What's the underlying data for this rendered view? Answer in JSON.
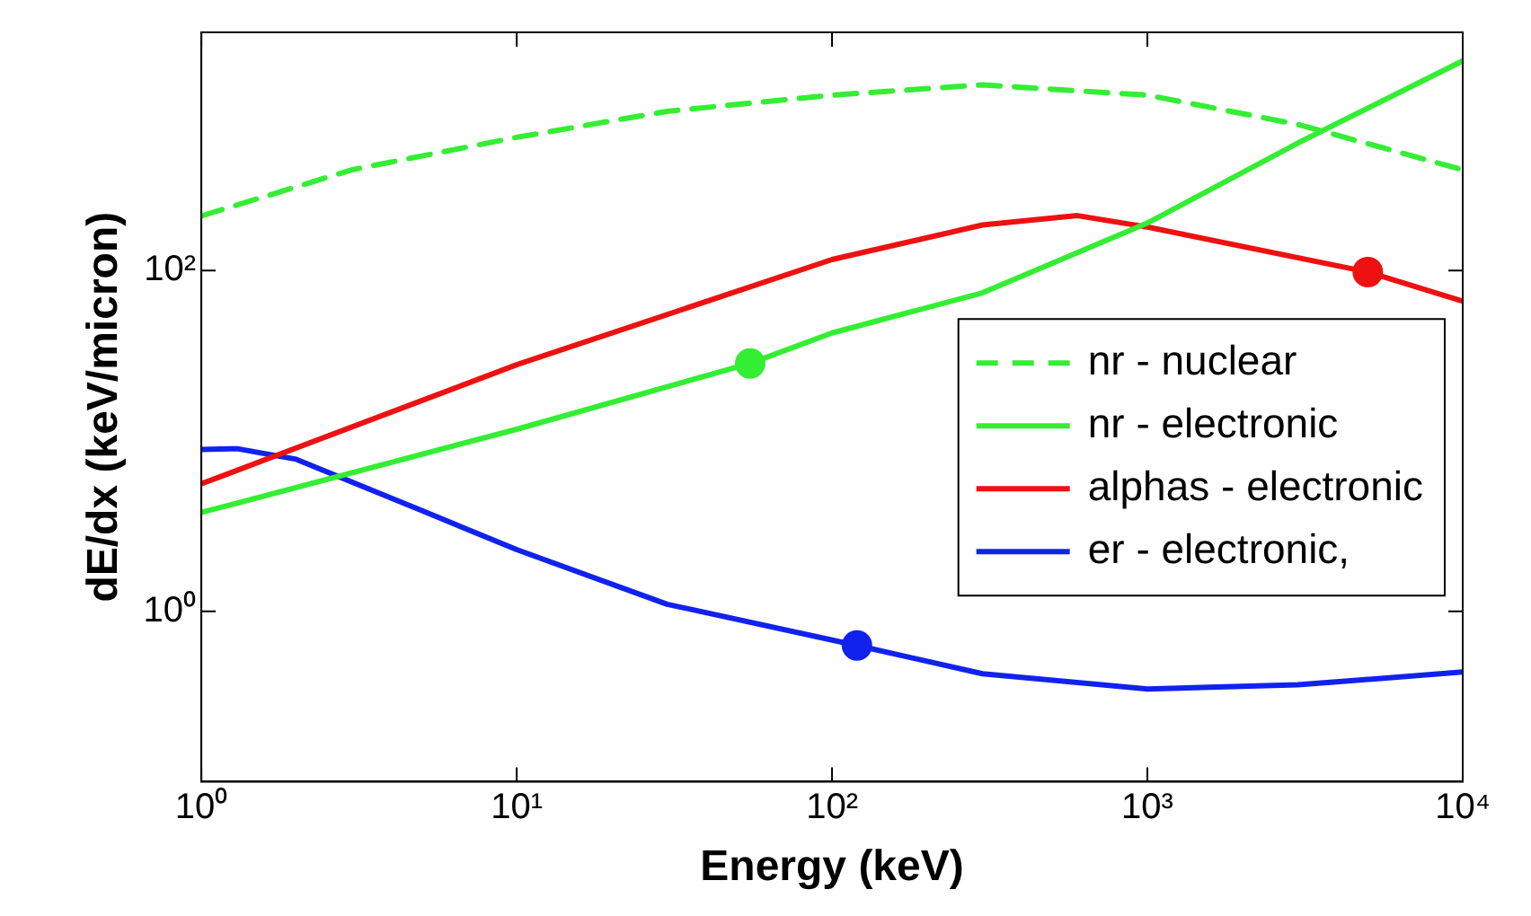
{
  "chart_data": {
    "type": "line",
    "xlabel": "Energy (keV)",
    "ylabel": "dE/dx (keV/micron)",
    "log": "xy",
    "xlim": [
      1,
      10000
    ],
    "ylim": [
      0.1,
      2500
    ],
    "xticks": [
      {
        "value": 1,
        "label": "10⁰"
      },
      {
        "value": 10,
        "label": "10¹"
      },
      {
        "value": 100,
        "label": "10²"
      },
      {
        "value": 1000,
        "label": "10³"
      },
      {
        "value": 10000,
        "label": "10⁴"
      }
    ],
    "yticks": [
      {
        "value": 1,
        "label": "10⁰"
      },
      {
        "value": 100,
        "label": "10²"
      }
    ],
    "grid": false,
    "legend": "right",
    "marker": "none",
    "series": [
      {
        "name": "nr - nuclear",
        "color": "#33ee33",
        "line_style": "dashed",
        "x": [
          1,
          3,
          10,
          30,
          100,
          300,
          1000,
          3000,
          10000
        ],
        "values": [
          209,
          390,
          605,
          860,
          1070,
          1230,
          1070,
          720,
          390
        ]
      },
      {
        "name": "nr - electronic",
        "color": "#33ee33",
        "x": [
          1,
          10,
          55,
          100,
          300,
          1000,
          3000,
          10000
        ],
        "values": [
          3.8,
          11.7,
          28.5,
          43,
          74,
          190,
          560,
          1700
        ]
      },
      {
        "name": "alphas - electronic",
        "color": "#ee1111",
        "x": [
          1,
          10,
          100,
          300,
          600,
          1000,
          5000,
          10000
        ],
        "values": [
          5.6,
          28,
          116,
          185,
          210,
          180,
          98,
          66
        ]
      },
      {
        "name": "er - electronic,",
        "color": "#1122ee",
        "x": [
          1,
          1.3,
          2,
          5,
          10,
          30,
          120,
          300,
          1000,
          3000,
          10000
        ],
        "values": [
          8.9,
          9,
          7.8,
          3.9,
          2.3,
          1.1,
          0.63,
          0.43,
          0.35,
          0.37,
          0.44
        ]
      },
      {
        "type": "scatter",
        "color": "#33ee33",
        "marker": "circle",
        "x": [
          55
        ],
        "values": [
          28.5
        ]
      },
      {
        "type": "scatter",
        "color": "#ee1111",
        "marker": "circle",
        "x": [
          5000
        ],
        "values": [
          98
        ]
      },
      {
        "type": "scatter",
        "color": "#1122ee",
        "marker": "circle",
        "x": [
          120
        ],
        "values": [
          0.63
        ]
      }
    ]
  }
}
